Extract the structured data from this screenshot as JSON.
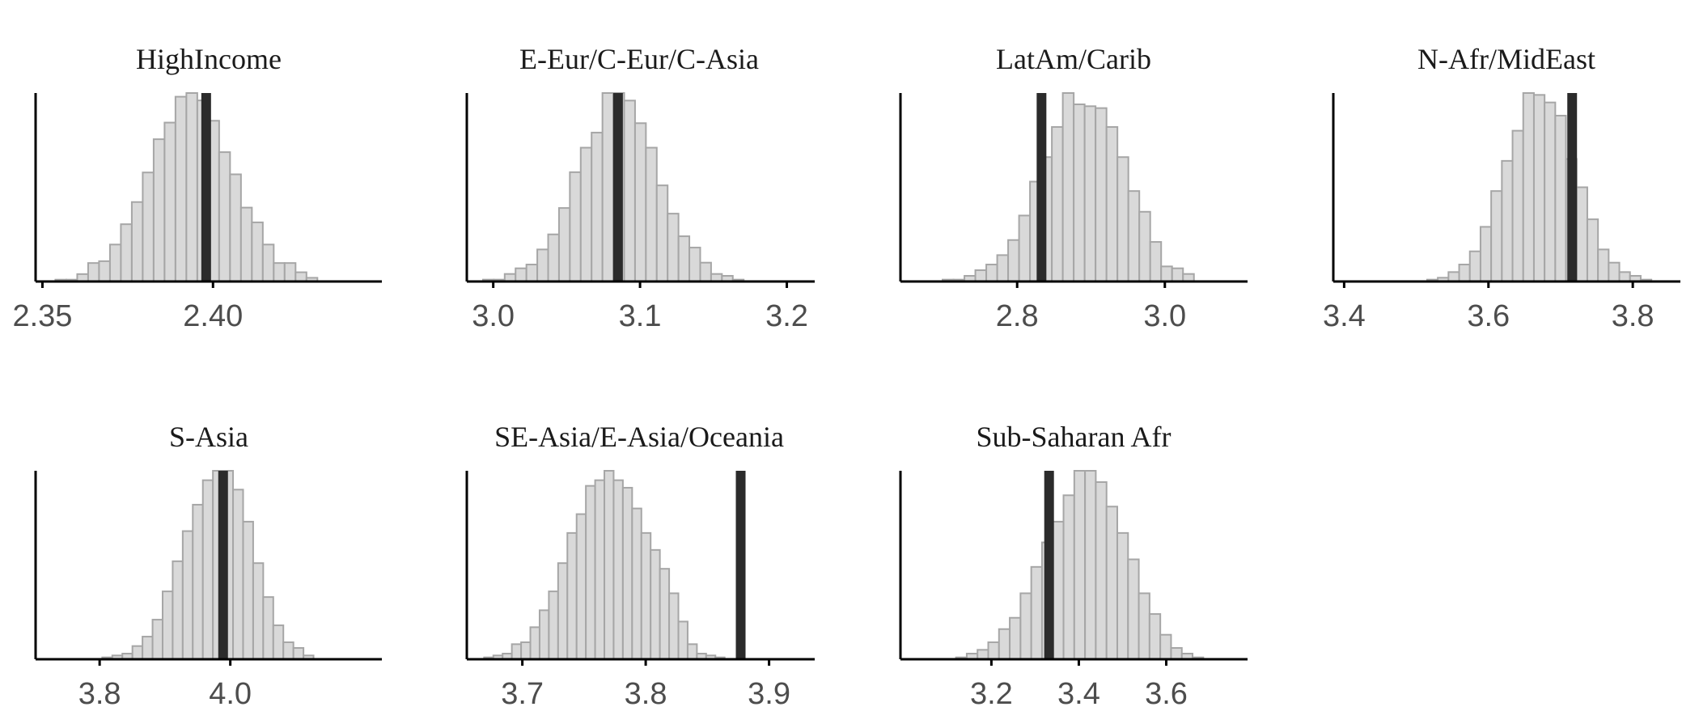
{
  "chart_data": [
    {
      "type": "histogram",
      "title": "HighIncome",
      "xlim": [
        2.348,
        2.4495
      ],
      "ticks": [
        2.35,
        2.4
      ],
      "tick_labels": [
        "2.35",
        "2.40"
      ],
      "bin_start": 2.3538,
      "bin_width": 0.0032,
      "counts": [
        1,
        1,
        4,
        10,
        11,
        20,
        31,
        43,
        59,
        77,
        86,
        100,
        102,
        98,
        87,
        70,
        58,
        40,
        32,
        20,
        10,
        10,
        5,
        2
      ],
      "reference_value": 2.398
    },
    {
      "type": "histogram",
      "title": "E-Eur/C-Eur/C-Asia",
      "xlim": [
        2.982,
        3.219
      ],
      "ticks": [
        3.0,
        3.1,
        3.2
      ],
      "tick_labels": [
        "3.0",
        "3.1",
        "3.2"
      ],
      "bin_start": 2.993,
      "bin_width": 0.0074,
      "counts": [
        1,
        1,
        4,
        7,
        9,
        17,
        25,
        39,
        58,
        71,
        79,
        100,
        100,
        96,
        84,
        71,
        51,
        36,
        24,
        18,
        10,
        4,
        3,
        1
      ],
      "reference_value": 3.085
    },
    {
      "type": "histogram",
      "title": "LatAm/Carib",
      "xlim": [
        2.642,
        3.112
      ],
      "ticks": [
        2.8,
        3.0
      ],
      "tick_labels": [
        "2.8",
        "3.0"
      ],
      "bin_start": 2.699,
      "bin_width": 0.0148,
      "counts": [
        1,
        1,
        3,
        6,
        9,
        14,
        22,
        35,
        53,
        66,
        82,
        100,
        94,
        93,
        92,
        82,
        66,
        48,
        37,
        21,
        8,
        7,
        4
      ],
      "reference_value": 2.833
    },
    {
      "type": "histogram",
      "title": "N-Afr/MidEast",
      "xlim": [
        3.385,
        3.866
      ],
      "ticks": [
        3.4,
        3.6,
        3.8
      ],
      "tick_labels": [
        "3.4",
        "3.6",
        "3.8"
      ],
      "bin_start": 3.515,
      "bin_width": 0.0148,
      "counts": [
        1,
        2,
        5,
        9,
        16,
        29,
        48,
        64,
        80,
        100,
        99,
        95,
        88,
        65,
        50,
        33,
        17,
        10,
        5,
        3,
        1
      ],
      "reference_value": 3.716
    },
    {
      "type": "histogram",
      "title": "S-Asia",
      "xlim": [
        3.702,
        4.232
      ],
      "ticks": [
        3.8,
        4.0
      ],
      "tick_labels": [
        "3.8",
        "4.0"
      ],
      "bin_start": 3.804,
      "bin_width": 0.0154,
      "counts": [
        1,
        2,
        3,
        7,
        12,
        21,
        36,
        52,
        68,
        82,
        95,
        100,
        100,
        90,
        73,
        51,
        33,
        18,
        9,
        6,
        2
      ],
      "reference_value": 3.989
    },
    {
      "type": "histogram",
      "title": "SE-Asia/E-Asia/Oceania",
      "xlim": [
        3.655,
        3.937
      ],
      "ticks": [
        3.7,
        3.8,
        3.9
      ],
      "tick_labels": [
        "3.7",
        "3.8",
        "3.9"
      ],
      "bin_start": 3.669,
      "bin_width": 0.0075,
      "counts": [
        1,
        2,
        3,
        8,
        9,
        17,
        26,
        36,
        51,
        67,
        77,
        92,
        95,
        100,
        95,
        91,
        80,
        67,
        58,
        48,
        35,
        20,
        8,
        3,
        2,
        1
      ],
      "reference_value": 3.877
    },
    {
      "type": "histogram",
      "title": "Sub-Saharan Afr",
      "xlim": [
        2.992,
        3.786
      ],
      "ticks": [
        3.2,
        3.4,
        3.6
      ],
      "tick_labels": [
        "3.2",
        "3.4",
        "3.6"
      ],
      "bin_start": 3.119,
      "bin_width": 0.0246,
      "counts": [
        1,
        3,
        5,
        9,
        16,
        22,
        35,
        49,
        62,
        73,
        87,
        100,
        100,
        94,
        81,
        67,
        53,
        35,
        24,
        13,
        6,
        3,
        1
      ],
      "reference_value": 3.332
    }
  ]
}
